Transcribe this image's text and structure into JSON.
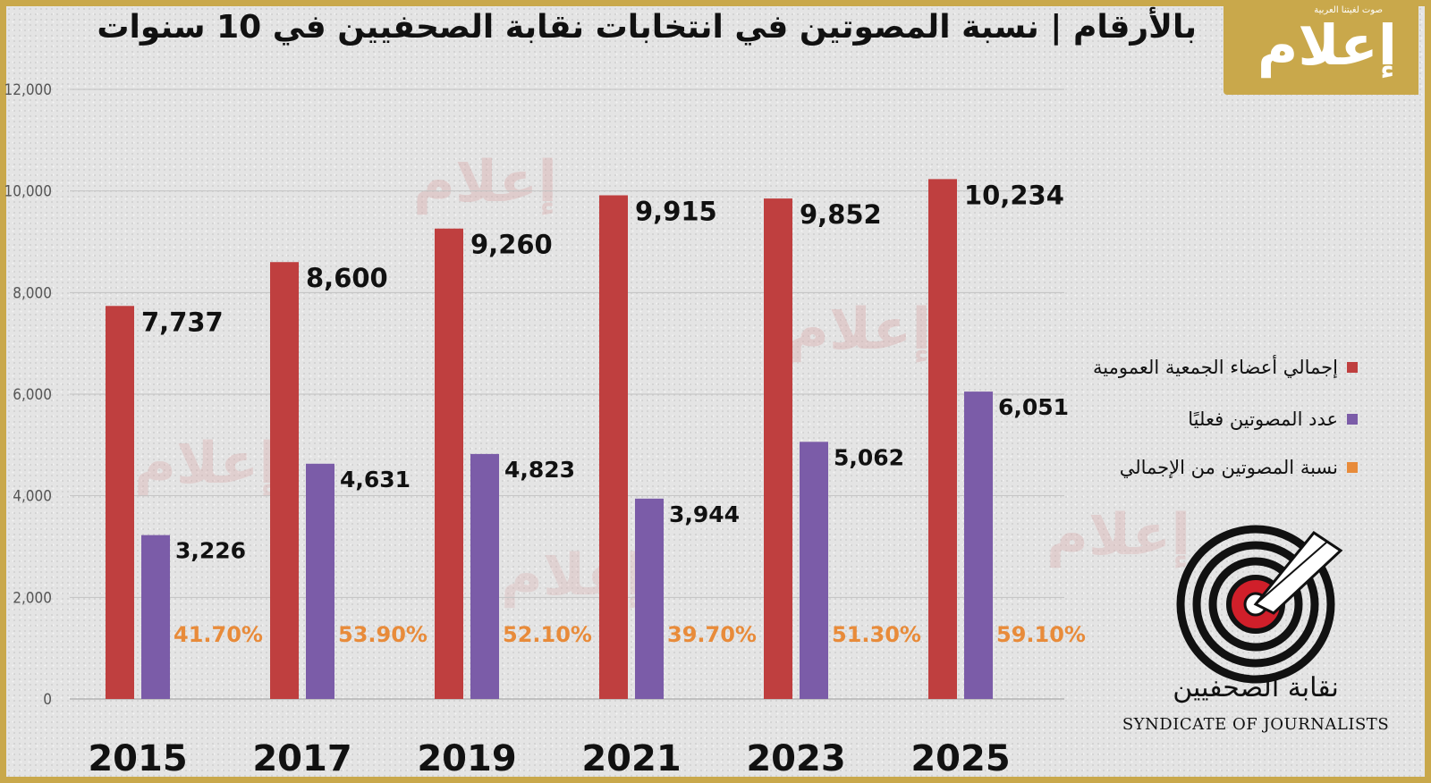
{
  "title": "بالأرقام | نسبة المصوتين في انتخابات نقابة الصحفيين في 10 سنوات",
  "brand": {
    "logo_text": "إعلام",
    "tagline": "صوت لغيتنا العربية",
    "watermark": "إعلام",
    "color": "#c9a84b"
  },
  "syndicate": {
    "arabic_name": "نقابة الصحفيين",
    "english_name": "SYNDICATE OF JOURNALISTS"
  },
  "legend": [
    {
      "label": "إجمالي أعضاء الجمعية العمومية",
      "color": "#bf3f3f"
    },
    {
      "label": "عدد المصوتين فعليًا",
      "color": "#7b5ca8"
    },
    {
      "label": "نسبة المصوتين من الإجمالي",
      "color": "#e88b3a"
    }
  ],
  "chart_data": {
    "type": "bar",
    "categories": [
      "2015",
      "2017",
      "2019",
      "2021",
      "2023",
      "2025"
    ],
    "series": [
      {
        "name": "إجمالي أعضاء الجمعية العمومية",
        "color": "#bf3f3f",
        "values": [
          7737,
          8600,
          9260,
          9915,
          9852,
          10234
        ],
        "labels": [
          "7,737",
          "8,600",
          "9,260",
          "9,915",
          "9,852",
          "10,234"
        ]
      },
      {
        "name": "عدد المصوتين فعليًا",
        "color": "#7b5ca8",
        "values": [
          3226,
          4631,
          4823,
          3944,
          5062,
          6051
        ],
        "labels": [
          "3,226",
          "4,631",
          "4,823",
          "3,944",
          "5,062",
          "6,051"
        ]
      },
      {
        "name": "نسبة المصوتين من الإجمالي",
        "color": "#e88b3a",
        "values": [
          41.7,
          53.9,
          52.1,
          39.7,
          51.3,
          59.1
        ],
        "labels": [
          "41.70%",
          "53.90%",
          "52.10%",
          "39.70%",
          "51.30%",
          "59.10%"
        ]
      }
    ],
    "ylim": [
      0,
      12000
    ],
    "yticks": [
      0,
      2000,
      4000,
      6000,
      8000,
      10000,
      12000
    ],
    "ytick_labels": [
      "0",
      "2,000",
      "4,000",
      "6,000",
      "8,000",
      "10,000",
      "12,000"
    ],
    "grid": true,
    "legend_position": "right"
  }
}
